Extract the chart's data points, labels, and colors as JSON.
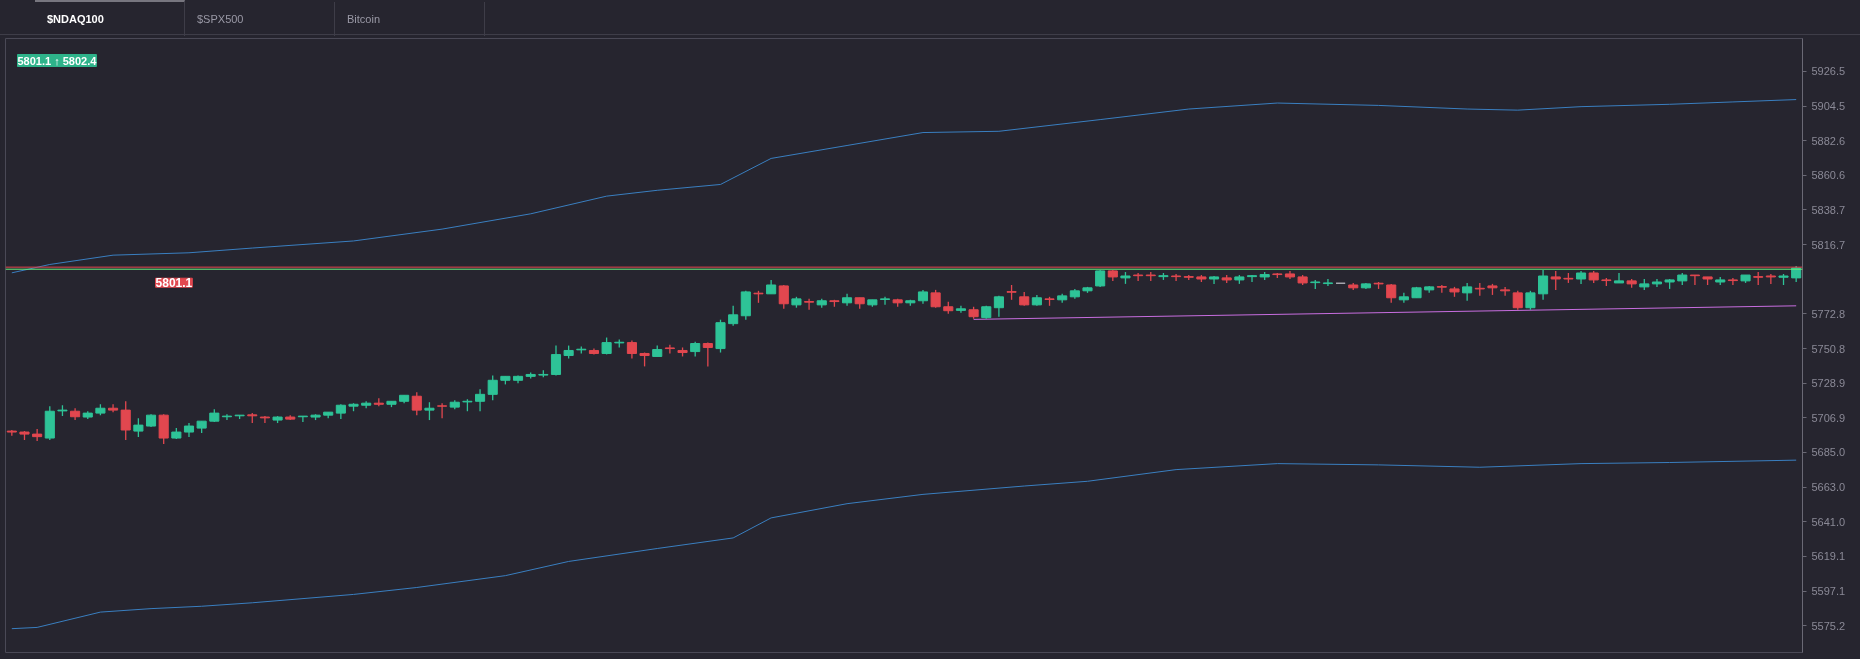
{
  "chart_data": {
    "type": "candlestick",
    "title": "$NDAQ100",
    "annotations": [
      "$SPX500",
      "Bitcoin",
      "5801.1 ↑ 5802.4"
    ],
    "categories": [
      null,
      null,
      null,
      null,
      null,
      null,
      null,
      null,
      null,
      null,
      null,
      null,
      null,
      null,
      null,
      null,
      null,
      null,
      null,
      null,
      null,
      null,
      null,
      null,
      null,
      null,
      null,
      null,
      null,
      null,
      null,
      null,
      null,
      null,
      null,
      null,
      null,
      null,
      null,
      null,
      null,
      null,
      null,
      null,
      null,
      null,
      null,
      null,
      null,
      null,
      null,
      null,
      null,
      null,
      null,
      null,
      null,
      null,
      null,
      null,
      null,
      null,
      null,
      null,
      null,
      null,
      null,
      null,
      null,
      null,
      null,
      null,
      null,
      null,
      null,
      null,
      null,
      null,
      null,
      null,
      null,
      null,
      null,
      null,
      null,
      null,
      null,
      null,
      null,
      null,
      null,
      null,
      null,
      null,
      null,
      null,
      null,
      null,
      null,
      null,
      null,
      null,
      null,
      null,
      null,
      null,
      null,
      null,
      null,
      null,
      null,
      null,
      null,
      null,
      null,
      null,
      null,
      null,
      null,
      null,
      null,
      null,
      null,
      null,
      null,
      null,
      null,
      null,
      null,
      null,
      null,
      null,
      null,
      null,
      null,
      null,
      null,
      null,
      null,
      null,
      null,
      null
    ],
    "ohlc": [
      [
        5698.5,
        5699.2,
        5695.6,
        5697.9
      ],
      [
        5697.9,
        5698.5,
        5692.9,
        5696.6
      ],
      [
        5696.6,
        5699.8,
        5692.2,
        5695.0
      ],
      [
        5694.1,
        5714.3,
        5692.9,
        5711.1
      ],
      [
        5711.3,
        5714.9,
        5708.0,
        5711.8
      ],
      [
        5711.1,
        5713.0,
        5705.5,
        5707.6
      ],
      [
        5707.4,
        5711.1,
        5706.1,
        5709.9
      ],
      [
        5709.9,
        5715.5,
        5708.6,
        5713.0
      ],
      [
        5713.0,
        5715.5,
        5710.5,
        5711.8
      ],
      [
        5711.8,
        5717.4,
        5692.9,
        5699.2
      ],
      [
        5698.5,
        5706.7,
        5694.8,
        5702.3
      ],
      [
        5701.7,
        5709.2,
        5701.1,
        5708.6
      ],
      [
        5708.6,
        5709.2,
        5690.3,
        5694.1
      ],
      [
        5694.1,
        5700.4,
        5693.5,
        5697.9
      ],
      [
        5697.9,
        5703.6,
        5694.8,
        5701.7
      ],
      [
        5700.4,
        5704.8,
        5697.3,
        5704.8
      ],
      [
        5704.8,
        5712.4,
        5704.2,
        5709.9
      ],
      [
        5707.6,
        5709.2,
        5705.5,
        5708.0
      ],
      [
        5708.2,
        5708.6,
        5706.1,
        5708.6
      ],
      [
        5708.8,
        5709.9,
        5703.6,
        5708.2
      ],
      [
        5707.4,
        5708.0,
        5703.6,
        5706.9
      ],
      [
        5705.5,
        5708.0,
        5703.6,
        5707.4
      ],
      [
        5707.4,
        5708.6,
        5705.5,
        5706.1
      ],
      [
        5707.6,
        5708.0,
        5704.2,
        5708.0
      ],
      [
        5707.4,
        5709.2,
        5705.5,
        5708.6
      ],
      [
        5708.6,
        5710.5,
        5706.7,
        5710.5
      ],
      [
        5709.9,
        5715.5,
        5706.1,
        5714.9
      ],
      [
        5714.3,
        5716.2,
        5711.1,
        5715.5
      ],
      [
        5714.9,
        5717.4,
        5713.0,
        5716.2
      ],
      [
        5716.2,
        5719.3,
        5714.3,
        5715.5
      ],
      [
        5715.5,
        5717.4,
        5713.7,
        5717.4
      ],
      [
        5717.4,
        5721.2,
        5716.2,
        5721.2
      ],
      [
        5720.6,
        5723.1,
        5708.6,
        5711.8
      ],
      [
        5711.8,
        5716.8,
        5705.5,
        5713.0
      ],
      [
        5714.5,
        5716.2,
        5706.7,
        5714.3
      ],
      [
        5713.7,
        5718.1,
        5712.4,
        5716.8
      ],
      [
        5717.0,
        5718.7,
        5711.1,
        5717.4
      ],
      [
        5717.4,
        5725.0,
        5711.1,
        5721.8
      ],
      [
        5721.8,
        5733.8,
        5718.1,
        5730.7
      ],
      [
        5730.7,
        5733.2,
        5728.1,
        5733.2
      ],
      [
        5730.7,
        5733.8,
        5728.8,
        5733.2
      ],
      [
        5733.2,
        5735.7,
        5731.9,
        5734.4
      ],
      [
        5734.0,
        5737.0,
        5732.6,
        5734.4
      ],
      [
        5734.4,
        5752.7,
        5733.8,
        5747.0
      ],
      [
        5746.4,
        5752.7,
        5744.5,
        5749.6
      ],
      [
        5750.0,
        5752.1,
        5747.7,
        5750.4
      ],
      [
        5749.6,
        5750.8,
        5747.1,
        5747.7
      ],
      [
        5747.7,
        5757.8,
        5747.1,
        5754.6
      ],
      [
        5754.4,
        5756.5,
        5751.5,
        5754.8
      ],
      [
        5754.6,
        5755.9,
        5744.5,
        5747.7
      ],
      [
        5747.7,
        5748.3,
        5739.5,
        5746.4
      ],
      [
        5745.8,
        5752.7,
        5745.8,
        5750.2
      ],
      [
        5751.2,
        5753.3,
        5747.7,
        5750.8
      ],
      [
        5749.6,
        5751.5,
        5745.8,
        5748.3
      ],
      [
        5748.9,
        5755.2,
        5745.8,
        5754.0
      ],
      [
        5754.0,
        5754.6,
        5739.5,
        5751.5
      ],
      [
        5750.8,
        5769.1,
        5748.3,
        5767.2
      ],
      [
        5766.6,
        5777.9,
        5765.3,
        5772.2
      ],
      [
        5771.6,
        5787.4,
        5769.1,
        5786.7
      ],
      [
        5785.9,
        5787.4,
        5779.8,
        5785.5
      ],
      [
        5785.5,
        5794.3,
        5785.5,
        5791.1
      ],
      [
        5790.5,
        5791.1,
        5776.0,
        5779.2
      ],
      [
        5778.5,
        5783.6,
        5776.7,
        5782.3
      ],
      [
        5780.6,
        5782.3,
        5775.4,
        5780.2
      ],
      [
        5778.5,
        5782.3,
        5776.7,
        5781.1
      ],
      [
        5781.1,
        5781.7,
        5777.3,
        5780.6
      ],
      [
        5779.8,
        5785.5,
        5777.9,
        5783.0
      ],
      [
        5783.0,
        5783.0,
        5776.0,
        5779.2
      ],
      [
        5778.5,
        5781.7,
        5777.3,
        5781.7
      ],
      [
        5781.9,
        5783.6,
        5778.5,
        5782.3
      ],
      [
        5781.7,
        5782.3,
        5777.3,
        5779.8
      ],
      [
        5779.8,
        5781.7,
        5777.9,
        5781.1
      ],
      [
        5781.1,
        5788.0,
        5779.2,
        5786.7
      ],
      [
        5786.1,
        5788.0,
        5776.7,
        5777.3
      ],
      [
        5777.3,
        5780.4,
        5772.9,
        5774.8
      ],
      [
        5775.0,
        5777.9,
        5773.5,
        5776.0
      ],
      [
        5775.4,
        5777.3,
        5769.7,
        5771.0
      ],
      [
        5770.4,
        5777.9,
        5769.7,
        5777.3
      ],
      [
        5776.7,
        5784.2,
        5771.0,
        5783.6
      ],
      [
        5786.9,
        5791.1,
        5781.7,
        5786.5
      ],
      [
        5783.6,
        5786.7,
        5777.9,
        5778.5
      ],
      [
        5778.5,
        5784.8,
        5777.9,
        5783.0
      ],
      [
        5782.3,
        5783.6,
        5777.9,
        5781.9
      ],
      [
        5781.7,
        5785.5,
        5779.8,
        5784.2
      ],
      [
        5783.6,
        5788.6,
        5782.3,
        5787.4
      ],
      [
        5787.4,
        5789.9,
        5786.1,
        5789.3
      ],
      [
        5790.5,
        5800.6,
        5789.9,
        5800.0
      ],
      [
        5800.0,
        5800.6,
        5793.7,
        5796.2
      ],
      [
        5795.6,
        5799.3,
        5791.8,
        5796.8
      ],
      [
        5797.4,
        5798.7,
        5793.7,
        5797.0
      ],
      [
        5797.4,
        5799.3,
        5793.7,
        5797.0
      ],
      [
        5796.4,
        5798.7,
        5794.3,
        5797.0
      ],
      [
        5796.8,
        5798.1,
        5793.7,
        5796.4
      ],
      [
        5796.4,
        5797.4,
        5794.3,
        5796.0
      ],
      [
        5796.2,
        5797.4,
        5793.0,
        5794.9
      ],
      [
        5794.9,
        5796.8,
        5791.8,
        5796.2
      ],
      [
        5795.6,
        5797.4,
        5792.4,
        5794.3
      ],
      [
        5794.3,
        5797.4,
        5791.8,
        5796.2
      ],
      [
        5796.4,
        5797.4,
        5793.0,
        5797.0
      ],
      [
        5796.2,
        5799.3,
        5794.3,
        5797.7
      ],
      [
        5798.1,
        5798.7,
        5795.6,
        5797.7
      ],
      [
        5798.1,
        5800.0,
        5794.9,
        5796.2
      ],
      [
        5796.2,
        5797.4,
        5791.1,
        5792.4
      ],
      [
        5792.6,
        5794.3,
        5788.6,
        5793.0
      ],
      [
        5792.0,
        5794.9,
        5790.5,
        5792.4
      ],
      [
        5792.2,
        5792.2,
        5792.2,
        5792.2
      ],
      [
        5791.1,
        5792.4,
        5788.0,
        5789.3
      ],
      [
        5789.3,
        5792.4,
        5788.6,
        5791.8
      ],
      [
        5792.2,
        5793.0,
        5788.6,
        5791.8
      ],
      [
        5791.1,
        5791.8,
        5779.8,
        5783.0
      ],
      [
        5781.7,
        5786.1,
        5779.8,
        5783.6
      ],
      [
        5783.0,
        5789.9,
        5783.0,
        5789.3
      ],
      [
        5788.0,
        5790.5,
        5786.1,
        5789.9
      ],
      [
        5790.1,
        5791.1,
        5786.1,
        5789.7
      ],
      [
        5788.6,
        5789.9,
        5783.6,
        5786.7
      ],
      [
        5786.1,
        5792.4,
        5781.1,
        5789.9
      ],
      [
        5789.0,
        5792.4,
        5784.2,
        5788.6
      ],
      [
        5790.5,
        5791.8,
        5784.8,
        5789.3
      ],
      [
        5788.0,
        5789.9,
        5784.2,
        5787.4
      ],
      [
        5786.1,
        5787.4,
        5775.4,
        5776.7
      ],
      [
        5776.7,
        5787.4,
        5775.4,
        5786.1
      ],
      [
        5785.5,
        5800.6,
        5781.7,
        5796.8
      ],
      [
        5796.2,
        5800.0,
        5788.0,
        5794.9
      ],
      [
        5795.3,
        5798.7,
        5792.4,
        5794.9
      ],
      [
        5794.9,
        5800.0,
        5791.8,
        5798.7
      ],
      [
        5798.7,
        5800.0,
        5792.4,
        5794.3
      ],
      [
        5794.3,
        5795.6,
        5790.5,
        5793.9
      ],
      [
        5792.4,
        5798.7,
        5792.4,
        5793.7
      ],
      [
        5793.7,
        5794.9,
        5789.3,
        5791.8
      ],
      [
        5789.9,
        5794.9,
        5788.0,
        5791.8
      ],
      [
        5791.8,
        5794.9,
        5789.9,
        5793.0
      ],
      [
        5793.0,
        5794.9,
        5788.6,
        5794.3
      ],
      [
        5793.7,
        5798.7,
        5791.1,
        5797.4
      ],
      [
        5797.4,
        5797.4,
        5791.1,
        5797.0
      ],
      [
        5796.2,
        5796.2,
        5791.1,
        5794.9
      ],
      [
        5793.0,
        5796.2,
        5791.1,
        5794.3
      ],
      [
        5794.3,
        5795.6,
        5791.1,
        5793.9
      ],
      [
        5793.7,
        5797.4,
        5792.4,
        5797.4
      ],
      [
        5796.4,
        5799.3,
        5791.1,
        5796.0
      ],
      [
        5796.8,
        5798.1,
        5791.8,
        5796.2
      ],
      [
        5796.0,
        5798.1,
        5791.1,
        5796.8
      ],
      [
        5795.6,
        5803.1,
        5793.0,
        5801.9
      ]
    ],
    "colors": [
      "#e2474f",
      "#e2474f",
      "#e2474f",
      "#2ec397",
      "#2ec397",
      "#e2474f",
      "#2ec397",
      "#2ec397",
      "#e2474f",
      "#e2474f",
      "#2ec397",
      "#2ec397",
      "#e2474f",
      "#2ec397",
      "#2ec397",
      "#2ec397",
      "#2ec397",
      "#2ec397",
      "#2ec397",
      "#e2474f",
      "#e2474f",
      "#2ec397",
      "#e2474f",
      "#2ec397",
      "#2ec397",
      "#2ec397",
      "#2ec397",
      "#2ec397",
      "#2ec397",
      "#e2474f",
      "#2ec397",
      "#2ec397",
      "#e2474f",
      "#2ec397",
      "#e2474f",
      "#2ec397",
      "#2ec397",
      "#2ec397",
      "#2ec397",
      "#2ec397",
      "#2ec397",
      "#2ec397",
      "#2ec397",
      "#2ec397",
      "#2ec397",
      "#2ec397",
      "#e2474f",
      "#2ec397",
      "#2ec397",
      "#e2474f",
      "#e2474f",
      "#2ec397",
      "#e2474f",
      "#e2474f",
      "#2ec397",
      "#e2474f",
      "#2ec397",
      "#2ec397",
      "#2ec397",
      "#e2474f",
      "#2ec397",
      "#e2474f",
      "#2ec397",
      "#e2474f",
      "#2ec397",
      "#e2474f",
      "#2ec397",
      "#e2474f",
      "#2ec397",
      "#2ec397",
      "#e2474f",
      "#2ec397",
      "#2ec397",
      "#e2474f",
      "#e2474f",
      "#2ec397",
      "#e2474f",
      "#2ec397",
      "#2ec397",
      "#e2474f",
      "#e2474f",
      "#2ec397",
      "#e2474f",
      "#2ec397",
      "#2ec397",
      "#2ec397",
      "#2ec397",
      "#e2474f",
      "#2ec397",
      "#e2474f",
      "#e2474f",
      "#2ec397",
      "#e2474f",
      "#e2474f",
      "#e2474f",
      "#2ec397",
      "#e2474f",
      "#2ec397",
      "#2ec397",
      "#2ec397",
      "#e2474f",
      "#e2474f",
      "#e2474f",
      "#2ec397",
      "#2ec397",
      "#b0b0b8",
      "#e2474f",
      "#2ec397",
      "#e2474f",
      "#e2474f",
      "#2ec397",
      "#2ec397",
      "#2ec397",
      "#e2474f",
      "#e2474f",
      "#2ec397",
      "#e2474f",
      "#e2474f",
      "#e2474f",
      "#e2474f",
      "#2ec397",
      "#2ec397",
      "#e2474f",
      "#e2474f",
      "#2ec397",
      "#e2474f",
      "#e2474f",
      "#2ec397",
      "#e2474f",
      "#2ec397",
      "#2ec397",
      "#2ec397",
      "#2ec397",
      "#e2474f",
      "#e2474f",
      "#2ec397",
      "#e2474f",
      "#2ec397",
      "#e2474f",
      "#e2474f",
      "#2ec397",
      "#2ec397"
    ],
    "series": [
      {
        "type": "line",
        "color": "#3a7fc0",
        "values": [
          5798.8,
          null,
          null,
          5804.1,
          null,
          null,
          null,
          null,
          5810.0,
          null,
          null,
          null,
          null,
          null,
          5811.5,
          null,
          null,
          null,
          null,
          5814.5,
          null,
          null,
          null,
          null,
          null,
          null,
          null,
          5819.0,
          null,
          null,
          null,
          null,
          null,
          null,
          5826.5,
          null,
          null,
          null,
          null,
          null,
          null,
          5836.2,
          null,
          null,
          null,
          null,
          null,
          5847.4,
          null,
          null,
          null,
          5851.1,
          null,
          null,
          null,
          null,
          5854.8,
          null,
          null,
          null,
          5871.3,
          null,
          null,
          null,
          null,
          null,
          5879.5,
          null,
          null,
          null,
          null,
          null,
          5887.7,
          null,
          null,
          null,
          null,
          null,
          5888.5,
          null,
          null,
          null,
          null,
          null,
          null,
          null,
          5895.9,
          null,
          null,
          null,
          null,
          null,
          null,
          5902.6,
          null,
          null,
          null,
          null,
          null,
          null,
          5906.4,
          null,
          null,
          null,
          null,
          null,
          null,
          null,
          5904.9,
          null,
          null,
          null,
          null,
          null,
          null,
          5902.6,
          null,
          null,
          null,
          5901.9,
          null,
          null,
          null,
          null,
          5904.1,
          null,
          null,
          null,
          null,
          null,
          null,
          5905.6,
          null,
          null,
          null,
          null,
          5907.1,
          null,
          null,
          null,
          null,
          5908.6
        ]
      },
      {
        "type": "line",
        "color": "#3a7fc0",
        "values": [
          5573.3,
          null,
          5574.1,
          null,
          null,
          null,
          null,
          5583.8,
          null,
          null,
          null,
          5586.0,
          null,
          null,
          null,
          5587.5,
          null,
          null,
          null,
          5589.7,
          null,
          null,
          null,
          null,
          null,
          null,
          null,
          5595.0,
          null,
          null,
          null,
          null,
          5599.4,
          null,
          null,
          null,
          null,
          null,
          null,
          5606.9,
          null,
          null,
          null,
          null,
          5615.9,
          null,
          null,
          null,
          null,
          null,
          null,
          5624.1,
          null,
          null,
          null,
          null,
          null,
          5630.8,
          null,
          null,
          5643.5,
          null,
          null,
          null,
          null,
          null,
          5652.5,
          null,
          null,
          null,
          null,
          null,
          5658.4,
          null,
          null,
          null,
          null,
          null,
          null,
          null,
          5663.7,
          null,
          null,
          null,
          null,
          5666.7,
          null,
          null,
          null,
          null,
          null,
          null,
          5674.1,
          null,
          null,
          null,
          null,
          null,
          null,
          null,
          5677.9,
          null,
          null,
          null,
          null,
          null,
          null,
          null,
          5677.1,
          null,
          null,
          null,
          null,
          null,
          null,
          null,
          5675.6,
          null,
          null,
          null,
          null,
          null,
          null,
          null,
          5677.9,
          null,
          null,
          null,
          null,
          null,
          null,
          5678.6,
          null,
          null,
          null,
          null,
          null,
          null,
          null,
          null,
          null,
          5680.1
        ]
      },
      {
        "type": "line",
        "color": "#c86ee0",
        "values": [
          null,
          null,
          null,
          null,
          null,
          null,
          null,
          null,
          null,
          null,
          null,
          null,
          null,
          null,
          null,
          null,
          null,
          null,
          null,
          null,
          null,
          null,
          null,
          null,
          null,
          null,
          null,
          null,
          null,
          null,
          null,
          null,
          null,
          null,
          null,
          null,
          null,
          null,
          null,
          null,
          null,
          null,
          null,
          null,
          null,
          null,
          null,
          null,
          null,
          null,
          null,
          null,
          null,
          null,
          null,
          null,
          null,
          null,
          null,
          null,
          null,
          null,
          null,
          null,
          null,
          null,
          null,
          null,
          null,
          null,
          null,
          null,
          null,
          null,
          null,
          null,
          5769.3,
          null,
          null,
          null,
          null,
          null,
          null,
          null,
          null,
          null,
          null,
          null,
          null,
          null,
          null,
          null,
          null,
          null,
          null,
          null,
          null,
          null,
          null,
          null,
          null,
          null,
          null,
          null,
          null,
          null,
          null,
          null,
          null,
          null,
          null,
          null,
          null,
          null,
          null,
          null,
          null,
          null,
          null,
          null,
          null,
          null,
          null,
          null,
          null,
          null,
          null,
          null,
          null,
          null,
          null,
          null,
          null,
          null,
          null,
          null,
          null,
          null,
          null,
          null,
          null,
          5777.9
        ]
      }
    ],
    "ref_lines": [
      {
        "axis": "y",
        "value": 5802.4,
        "color": "#e2474f"
      },
      {
        "axis": "y",
        "value": 5801.1,
        "color": "#69f07d",
        "label": "5801.1"
      }
    ],
    "ylim": [
      5558.2,
      5947.3
    ],
    "yticks": [
      5575.2,
      5597.1,
      5619.1,
      {
        "value": 5641.0,
        "label": "5641.0"
      },
      {
        "value": 5663.0,
        "label": "5663.0"
      },
      {
        "value": 5685.0,
        "label": "5685.0"
      },
      5706.9,
      5728.9,
      5750.8,
      5772.8,
      5816.7,
      5838.7,
      5860.6,
      5882.6,
      5904.5,
      5926.5
    ],
    "tick_labels": "y"
  }
}
